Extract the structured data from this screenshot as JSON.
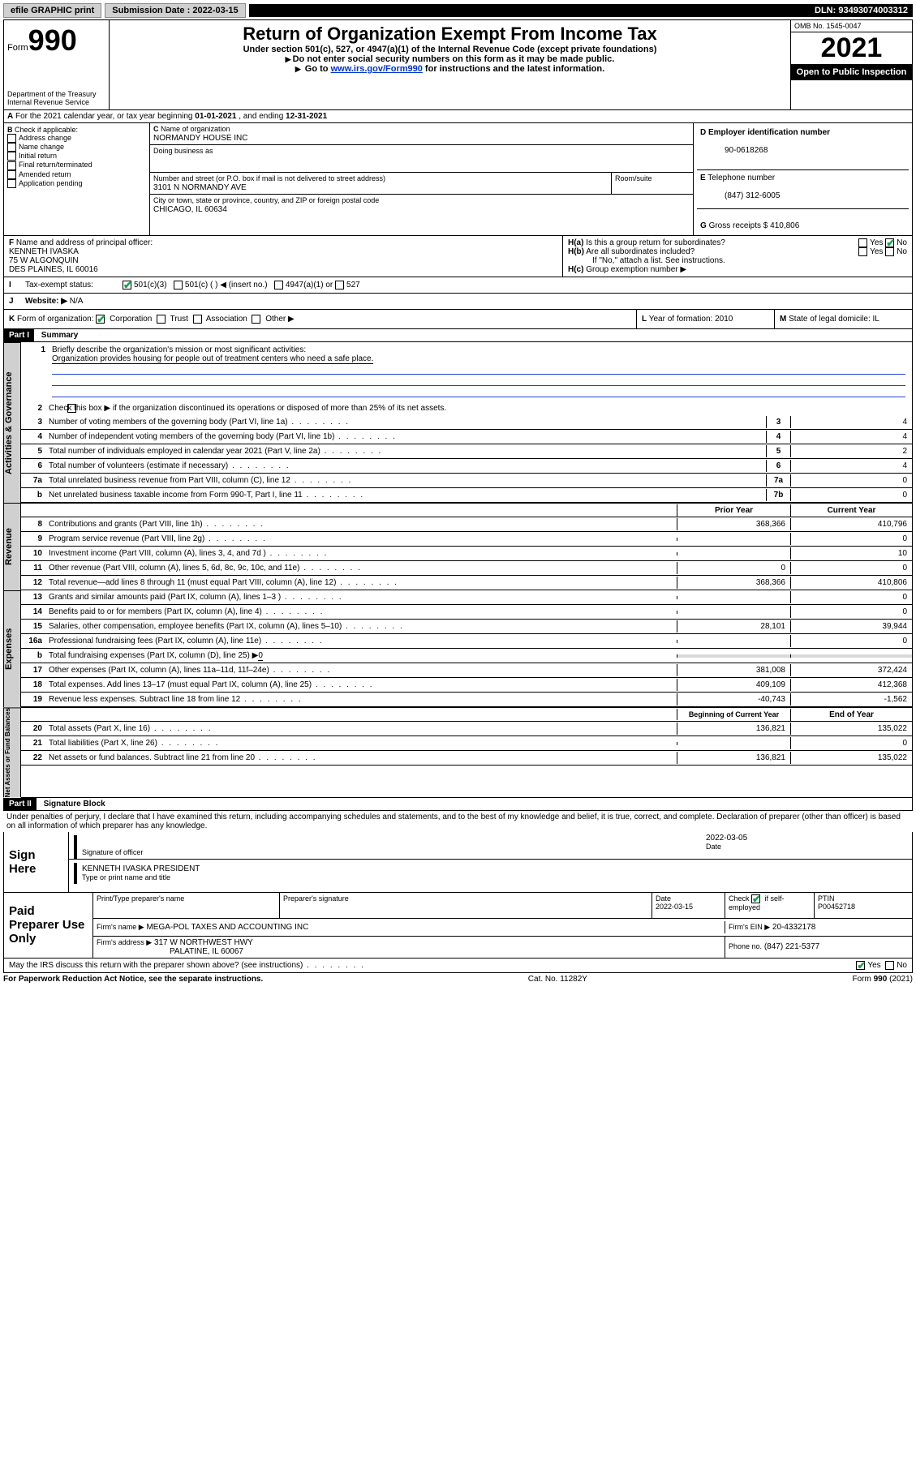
{
  "topbar": {
    "efile": "efile GRAPHIC print",
    "subdate_label": "Submission Date :",
    "subdate": "2022-03-15",
    "dln_label": "DLN:",
    "dln": "93493074003312"
  },
  "header": {
    "form_label": "Form",
    "form_no": "990",
    "dept": "Department of the Treasury",
    "irs": "Internal Revenue Service",
    "title": "Return of Organization Exempt From Income Tax",
    "sub1": "Under section 501(c), 527, or 4947(a)(1) of the Internal Revenue Code (except private foundations)",
    "sub2": "Do not enter social security numbers on this form as it may be made public.",
    "sub3a": "Go to ",
    "sub3_link": "www.irs.gov/Form990",
    "sub3b": " for instructions and the latest information.",
    "omb": "OMB No. 1545-0047",
    "year": "2021",
    "inspect": "Open to Public Inspection"
  },
  "A": {
    "text": "For the 2021 calendar year, or tax year beginning ",
    "begin": "01-01-2021",
    "mid": " , and ending ",
    "end": "12-31-2021"
  },
  "B": {
    "label": "Check if applicable:",
    "opts": [
      "Address change",
      "Name change",
      "Initial return",
      "Final return/terminated",
      "Amended return",
      "Application pending"
    ]
  },
  "C": {
    "name_label": "Name of organization",
    "name": "NORMANDY HOUSE INC",
    "dba_label": "Doing business as",
    "addr_label": "Number and street (or P.O. box if mail is not delivered to street address)",
    "room_label": "Room/suite",
    "addr": "3101 N NORMANDY AVE",
    "city_label": "City or town, state or province, country, and ZIP or foreign postal code",
    "city": "CHICAGO, IL  60634"
  },
  "D": {
    "label": "Employer identification number",
    "val": "90-0618268"
  },
  "E": {
    "label": "Telephone number",
    "val": "(847) 312-6005"
  },
  "G": {
    "label": "Gross receipts $",
    "val": "410,806"
  },
  "F": {
    "label": "Name and address of principal officer:",
    "name": "KENNETH IVASKA",
    "addr1": "75 W ALGONQUIN",
    "addr2": "DES PLAINES, IL  60016"
  },
  "H": {
    "a": "Is this a group return for subordinates?",
    "b": "Are all subordinates included?",
    "b2": "If \"No,\" attach a list. See instructions.",
    "c": "Group exemption number ▶",
    "yes": "Yes",
    "no": "No"
  },
  "I": {
    "label": "Tax-exempt status:",
    "o1": "501(c)(3)",
    "o2": "501(c) (  ) ◀ (insert no.)",
    "o3": "4947(a)(1) or",
    "o4": "527"
  },
  "J": {
    "label": "Website: ▶",
    "val": "N/A"
  },
  "K": {
    "label": "Form of organization:",
    "o1": "Corporation",
    "o2": "Trust",
    "o3": "Association",
    "o4": "Other ▶"
  },
  "L": {
    "label": "Year of formation:",
    "val": "2010"
  },
  "M": {
    "label": "State of legal domicile:",
    "val": "IL"
  },
  "part1": {
    "bar": "Part I",
    "title": "Summary",
    "q1": "Briefly describe the organization's mission or most significant activities:",
    "q1ans": "Organization provides housing for people out of treatment centers who need a safe place.",
    "q2": "Check this box ▶       if the organization discontinued its operations or disposed of more than 25% of its net assets.",
    "rows_gov": [
      {
        "n": "3",
        "t": "Number of voting members of the governing body (Part VI, line 1a)",
        "nc": "3",
        "v": "4"
      },
      {
        "n": "4",
        "t": "Number of independent voting members of the governing body (Part VI, line 1b)",
        "nc": "4",
        "v": "4"
      },
      {
        "n": "5",
        "t": "Total number of individuals employed in calendar year 2021 (Part V, line 2a)",
        "nc": "5",
        "v": "2"
      },
      {
        "n": "6",
        "t": "Total number of volunteers (estimate if necessary)",
        "nc": "6",
        "v": "4"
      },
      {
        "n": "7a",
        "t": "Total unrelated business revenue from Part VIII, column (C), line 12",
        "nc": "7a",
        "v": "0"
      },
      {
        "n": "b",
        "t": "Net unrelated business taxable income from Form 990-T, Part I, line 11",
        "nc": "7b",
        "v": "0"
      }
    ],
    "hdr_prior": "Prior Year",
    "hdr_curr": "Current Year",
    "rows_rev": [
      {
        "n": "8",
        "t": "Contributions and grants (Part VIII, line 1h)",
        "p": "368,366",
        "c": "410,796"
      },
      {
        "n": "9",
        "t": "Program service revenue (Part VIII, line 2g)",
        "p": "",
        "c": "0"
      },
      {
        "n": "10",
        "t": "Investment income (Part VIII, column (A), lines 3, 4, and 7d )",
        "p": "",
        "c": "10"
      },
      {
        "n": "11",
        "t": "Other revenue (Part VIII, column (A), lines 5, 6d, 8c, 9c, 10c, and 11e)",
        "p": "0",
        "c": "0"
      },
      {
        "n": "12",
        "t": "Total revenue—add lines 8 through 11 (must equal Part VIII, column (A), line 12)",
        "p": "368,366",
        "c": "410,806"
      }
    ],
    "rows_exp": [
      {
        "n": "13",
        "t": "Grants and similar amounts paid (Part IX, column (A), lines 1–3 )",
        "p": "",
        "c": "0"
      },
      {
        "n": "14",
        "t": "Benefits paid to or for members (Part IX, column (A), line 4)",
        "p": "",
        "c": "0"
      },
      {
        "n": "15",
        "t": "Salaries, other compensation, employee benefits (Part IX, column (A), lines 5–10)",
        "p": "28,101",
        "c": "39,944"
      },
      {
        "n": "16a",
        "t": "Professional fundraising fees (Part IX, column (A), line 11e)",
        "p": "",
        "c": "0"
      }
    ],
    "row16b_a": "b",
    "row16b_t": "Total fundraising expenses (Part IX, column (D), line 25) ▶",
    "row16b_v": "0",
    "rows_exp2": [
      {
        "n": "17",
        "t": "Other expenses (Part IX, column (A), lines 11a–11d, 11f–24e)",
        "p": "381,008",
        "c": "372,424"
      },
      {
        "n": "18",
        "t": "Total expenses. Add lines 13–17 (must equal Part IX, column (A), line 25)",
        "p": "409,109",
        "c": "412,368"
      },
      {
        "n": "19",
        "t": "Revenue less expenses. Subtract line 18 from line 12",
        "p": "-40,743",
        "c": "-1,562"
      }
    ],
    "hdr_boy": "Beginning of Current Year",
    "hdr_eoy": "End of Year",
    "rows_net": [
      {
        "n": "20",
        "t": "Total assets (Part X, line 16)",
        "p": "136,821",
        "c": "135,022"
      },
      {
        "n": "21",
        "t": "Total liabilities (Part X, line 26)",
        "p": "",
        "c": "0"
      },
      {
        "n": "22",
        "t": "Net assets or fund balances. Subtract line 21 from line 20",
        "p": "136,821",
        "c": "135,022"
      }
    ],
    "tab_gov": "Activities & Governance",
    "tab_rev": "Revenue",
    "tab_exp": "Expenses",
    "tab_net": "Net Assets or Fund Balances"
  },
  "part2": {
    "bar": "Part II",
    "title": "Signature Block",
    "decl": "Under penalties of perjury, I declare that I have examined this return, including accompanying schedules and statements, and to the best of my knowledge and belief, it is true, correct, and complete. Declaration of preparer (other than officer) is based on all information of which preparer has any knowledge.",
    "sign": "Sign Here",
    "sig_officer": "Signature of officer",
    "date_l": "Date",
    "date": "2022-03-05",
    "officer_name": "KENNETH IVASKA  PRESIDENT",
    "type_name": "Type or print name and title",
    "paid": "Paid Preparer Use Only",
    "prep_name_l": "Print/Type preparer's name",
    "prep_sig_l": "Preparer's signature",
    "prep_date_l": "Date",
    "prep_date": "2022-03-15",
    "check_l": "Check",
    "self_emp": "if self-employed",
    "ptin_l": "PTIN",
    "ptin": "P00452718",
    "firm_name_l": "Firm's name   ▶",
    "firm_name": "MEGA-POL TAXES AND ACCOUNTING INC",
    "firm_ein_l": "Firm's EIN ▶",
    "firm_ein": "20-4332178",
    "firm_addr_l": "Firm's address ▶",
    "firm_addr1": "317 W NORTHWEST HWY",
    "firm_addr2": "PALATINE, IL  60067",
    "phone_l": "Phone no.",
    "phone": "(847) 221-5377",
    "discuss": "May the IRS discuss this return with the preparer shown above? (see instructions)",
    "yes": "Yes",
    "no": "No"
  },
  "footer": {
    "pra": "For Paperwork Reduction Act Notice, see the separate instructions.",
    "cat": "Cat. No. 11282Y",
    "form": "Form 990 (2021)"
  }
}
